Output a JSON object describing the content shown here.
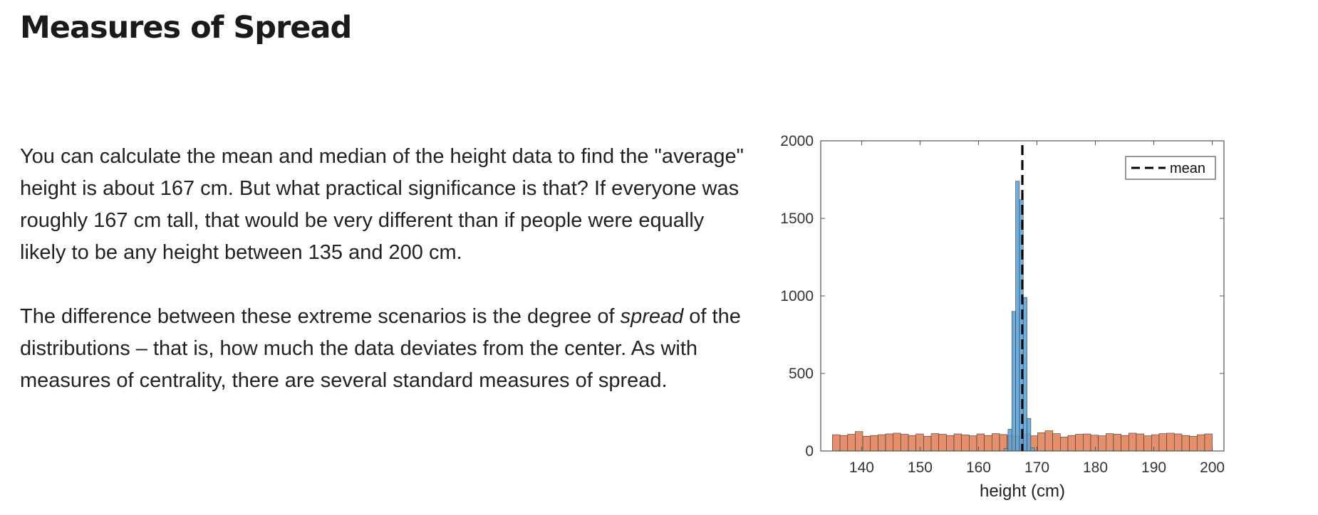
{
  "page": {
    "title": "Measures of Spread",
    "paragraph1": "You can calculate the mean and median of the height data to find the \"average\" height is about 167 cm. But what practical significance is that? If everyone was roughly 167 cm tall, that would be very different than if people were equally likely to be any height between 135 and 200 cm.",
    "paragraph2_em": "spread",
    "paragraph2_before": "The difference between these extreme scenarios is the degree of ",
    "paragraph2_after": " of the distributions – that is, how much the data deviates from the center. As with measures of centrality, there are several standard measures of spread."
  },
  "chart_data": {
    "type": "bar",
    "xlabel": "height (cm)",
    "ylabel": "",
    "xlim": [
      133,
      202
    ],
    "ylim": [
      0,
      2000
    ],
    "xticks": [
      140,
      150,
      160,
      170,
      180,
      190,
      200
    ],
    "yticks": [
      0,
      500,
      1000,
      1500,
      2000
    ],
    "legend": {
      "position": "top-right",
      "entries": [
        "mean"
      ]
    },
    "mean_line": {
      "x": 167.5,
      "label": "mean"
    },
    "series": [
      {
        "color": "#e07b54",
        "bin_start": 135,
        "bin_width": 1.3,
        "values": [
          105,
          100,
          108,
          125,
          95,
          100,
          105,
          110,
          115,
          108,
          100,
          110,
          95,
          112,
          108,
          100,
          110,
          104,
          98,
          110,
          100,
          112,
          106,
          100,
          95,
          110,
          98,
          118,
          130,
          112,
          90,
          100,
          108,
          110,
          102,
          98,
          112,
          108,
          100,
          115,
          110,
          98,
          105,
          112,
          115,
          110,
          100,
          95,
          105,
          110
        ]
      },
      {
        "color": "#5da5da",
        "bin_start": 164.4,
        "bin_width": 0.65,
        "values": [
          15,
          140,
          900,
          1740,
          1620,
          990,
          210,
          20
        ]
      }
    ]
  },
  "colors": {
    "accent_blue": "#5da5da",
    "accent_orange": "#e07b54"
  }
}
